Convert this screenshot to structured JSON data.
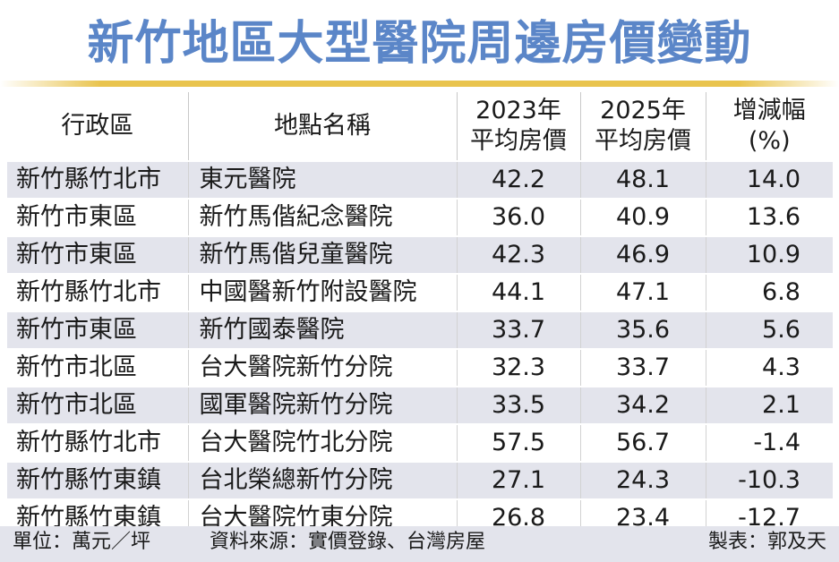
{
  "title": "新竹地區大型醫院周邊房價變動",
  "headers": {
    "district": "行政區",
    "place": "地點名稱",
    "price2023_line1": "2023年",
    "price2023_line2": "平均房價",
    "price2025_line1": "2025年",
    "price2025_line2": "平均房價",
    "change_line1": "增減幅",
    "change_line2": "(%)"
  },
  "footer": {
    "unit": "單位：萬元／坪",
    "source": "資料來源：實價登錄、台灣房屋",
    "maker": "製表：郭及天"
  },
  "colors": {
    "title": "#5b86c8",
    "rule": "#e9c44e",
    "stripe": "#e3e4ec"
  },
  "chart_data": {
    "type": "table",
    "title": "新竹地區大型醫院周邊房價變動",
    "columns": [
      "行政區",
      "地點名稱",
      "2023年平均房價",
      "2025年平均房價",
      "增減幅(%)"
    ],
    "rows": [
      {
        "district": "新竹縣竹北市",
        "place": "東元醫院",
        "price2023": "42.2",
        "price2025": "48.1",
        "change": "14.0"
      },
      {
        "district": "新竹市東區",
        "place": "新竹馬偕紀念醫院",
        "price2023": "36.0",
        "price2025": "40.9",
        "change": "13.6"
      },
      {
        "district": "新竹市東區",
        "place": "新竹馬偕兒童醫院",
        "price2023": "42.3",
        "price2025": "46.9",
        "change": "10.9"
      },
      {
        "district": "新竹縣竹北市",
        "place": "中國醫新竹附設醫院",
        "price2023": "44.1",
        "price2025": "47.1",
        "change": "6.8"
      },
      {
        "district": "新竹市東區",
        "place": "新竹國泰醫院",
        "price2023": "33.7",
        "price2025": "35.6",
        "change": "5.6"
      },
      {
        "district": "新竹市北區",
        "place": "台大醫院新竹分院",
        "price2023": "32.3",
        "price2025": "33.7",
        "change": "4.3"
      },
      {
        "district": "新竹市北區",
        "place": "國軍醫院新竹分院",
        "price2023": "33.5",
        "price2025": "34.2",
        "change": "2.1"
      },
      {
        "district": "新竹縣竹北市",
        "place": "台大醫院竹北分院",
        "price2023": "57.5",
        "price2025": "56.7",
        "change": "-1.4"
      },
      {
        "district": "新竹縣竹東鎮",
        "place": "台北榮總新竹分院",
        "price2023": "27.1",
        "price2025": "24.3",
        "change": "-10.3"
      },
      {
        "district": "新竹縣竹東鎮",
        "place": "台大醫院竹東分院",
        "price2023": "26.8",
        "price2025": "23.4",
        "change": "-12.7"
      }
    ]
  }
}
